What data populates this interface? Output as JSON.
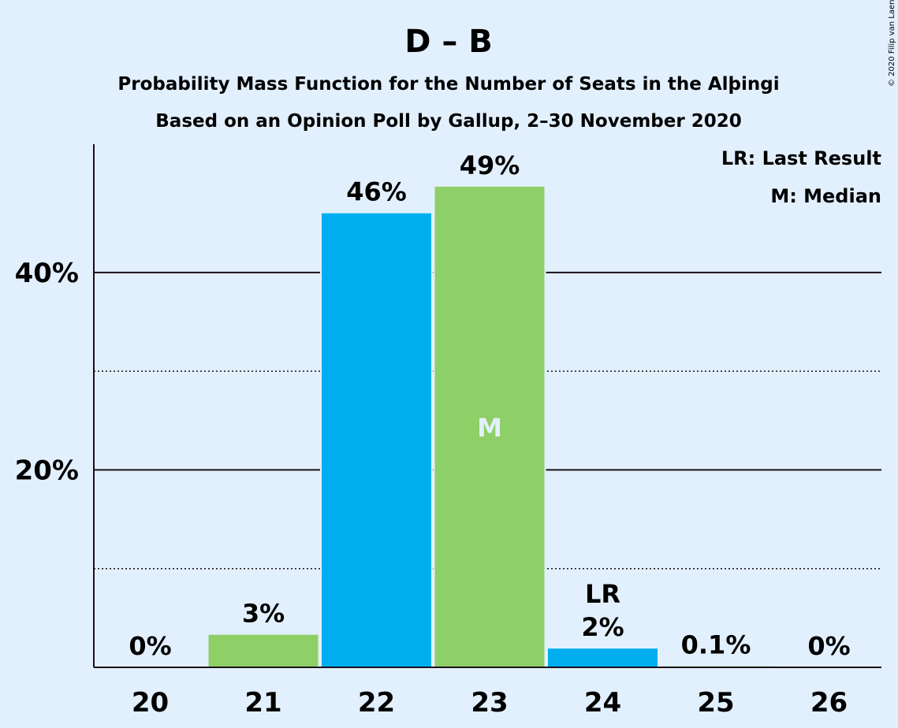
{
  "chart_data": {
    "type": "bar",
    "title": "D – B",
    "subtitle": "Probability Mass Function for the Number of Seats in the Alþingi",
    "subtitle2": "Based on an Opinion Poll by Gallup, 2–30 November 2020",
    "copyright": "© 2020 Filip van Laenen",
    "categories": [
      "20",
      "21",
      "22",
      "23",
      "24",
      "25",
      "26"
    ],
    "values": [
      0,
      3.3,
      46,
      48.7,
      1.9,
      0.1,
      0
    ],
    "labels": [
      "0%",
      "3%",
      "46%",
      "49%",
      "2%",
      "0.1%",
      "0%"
    ],
    "bar_colors": [
      "#8ecf68",
      "#8ecf68",
      "#00aeef",
      "#8ecf68",
      "#00aeef",
      "#8ecf68",
      "#8ecf68"
    ],
    "ylim": [
      0,
      53
    ],
    "yticks": [
      {
        "value": 20,
        "label": "20%"
      },
      {
        "value": 40,
        "label": "40%"
      }
    ],
    "minor_gridlines": [
      10,
      30
    ],
    "median_category": "23",
    "median_marker": "M",
    "last_result_category": "24",
    "last_result_marker": "LR",
    "legend": [
      "LR: Last Result",
      "M: Median"
    ],
    "legend_position": "top-right",
    "colors": {
      "background": "#e2f0fe",
      "text": "#1a1017",
      "green": "#8ecf68",
      "blue": "#00aeef"
    }
  }
}
